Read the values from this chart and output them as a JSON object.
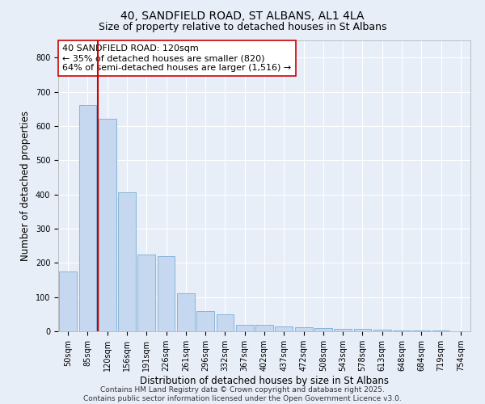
{
  "title": "40, SANDFIELD ROAD, ST ALBANS, AL1 4LA",
  "subtitle": "Size of property relative to detached houses in St Albans",
  "xlabel": "Distribution of detached houses by size in St Albans",
  "ylabel": "Number of detached properties",
  "categories": [
    "50sqm",
    "85sqm",
    "120sqm",
    "156sqm",
    "191sqm",
    "226sqm",
    "261sqm",
    "296sqm",
    "332sqm",
    "367sqm",
    "402sqm",
    "437sqm",
    "472sqm",
    "508sqm",
    "543sqm",
    "578sqm",
    "613sqm",
    "648sqm",
    "684sqm",
    "719sqm",
    "754sqm"
  ],
  "values": [
    175,
    660,
    620,
    405,
    225,
    220,
    110,
    60,
    50,
    20,
    18,
    15,
    12,
    10,
    8,
    6,
    4,
    3,
    2,
    2,
    1
  ],
  "bar_color": "#c5d8f0",
  "bar_edge_color": "#7aadd4",
  "highlight_index": 2,
  "highlight_color": "#cc0000",
  "annotation_text": "40 SANDFIELD ROAD: 120sqm\n← 35% of detached houses are smaller (820)\n64% of semi-detached houses are larger (1,516) →",
  "annotation_box_color": "#ffffff",
  "annotation_box_edge": "#cc0000",
  "ylim": [
    0,
    850
  ],
  "yticks": [
    0,
    100,
    200,
    300,
    400,
    500,
    600,
    700,
    800
  ],
  "bg_color": "#e8eef8",
  "grid_color": "#ffffff",
  "footer_text": "Contains HM Land Registry data © Crown copyright and database right 2025.\nContains public sector information licensed under the Open Government Licence v3.0.",
  "title_fontsize": 10,
  "subtitle_fontsize": 9,
  "annotation_fontsize": 8,
  "tick_fontsize": 7,
  "label_fontsize": 8.5,
  "footer_fontsize": 6.5
}
